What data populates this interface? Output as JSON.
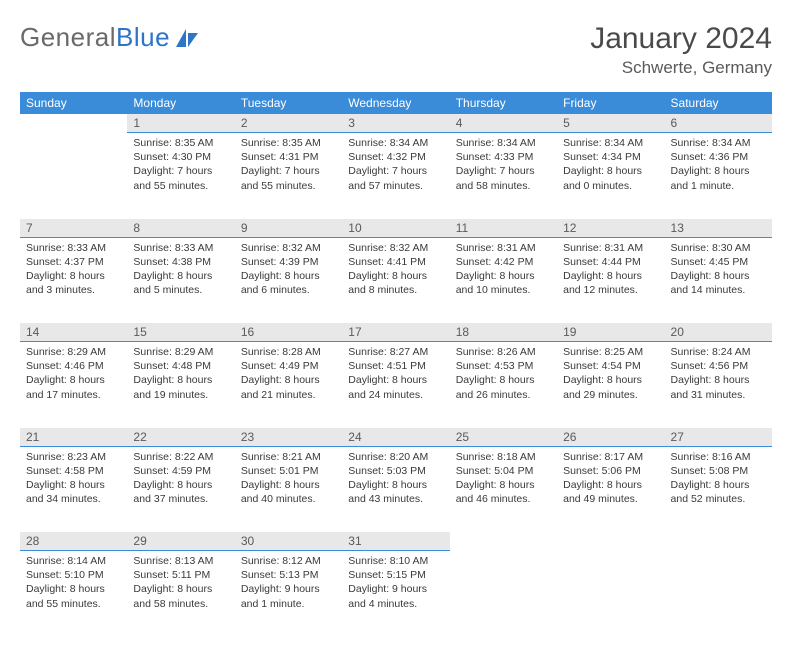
{
  "logo": {
    "text1": "General",
    "text2": "Blue"
  },
  "title": "January 2024",
  "location": "Schwerte, Germany",
  "day_headers": [
    "Sunday",
    "Monday",
    "Tuesday",
    "Wednesday",
    "Thursday",
    "Friday",
    "Saturday"
  ],
  "colors": {
    "header_bg": "#3a8bd8",
    "header_text": "#ffffff",
    "daynum_bg": "#e8e8e8",
    "daynum_border": "#3a8bd8",
    "body_text": "#3a3a3a",
    "page_bg": "#ffffff",
    "logo_gray": "#6a6a6a",
    "logo_blue": "#2d76c7"
  },
  "layout": {
    "cols": 7,
    "rows": 5,
    "cell_font_size_pt": 8
  },
  "weeks": [
    [
      null,
      {
        "n": "1",
        "sunrise": "Sunrise: 8:35 AM",
        "sunset": "Sunset: 4:30 PM",
        "daylight": "Daylight: 7 hours and 55 minutes."
      },
      {
        "n": "2",
        "sunrise": "Sunrise: 8:35 AM",
        "sunset": "Sunset: 4:31 PM",
        "daylight": "Daylight: 7 hours and 55 minutes."
      },
      {
        "n": "3",
        "sunrise": "Sunrise: 8:34 AM",
        "sunset": "Sunset: 4:32 PM",
        "daylight": "Daylight: 7 hours and 57 minutes."
      },
      {
        "n": "4",
        "sunrise": "Sunrise: 8:34 AM",
        "sunset": "Sunset: 4:33 PM",
        "daylight": "Daylight: 7 hours and 58 minutes."
      },
      {
        "n": "5",
        "sunrise": "Sunrise: 8:34 AM",
        "sunset": "Sunset: 4:34 PM",
        "daylight": "Daylight: 8 hours and 0 minutes."
      },
      {
        "n": "6",
        "sunrise": "Sunrise: 8:34 AM",
        "sunset": "Sunset: 4:36 PM",
        "daylight": "Daylight: 8 hours and 1 minute."
      }
    ],
    [
      {
        "n": "7",
        "sunrise": "Sunrise: 8:33 AM",
        "sunset": "Sunset: 4:37 PM",
        "daylight": "Daylight: 8 hours and 3 minutes."
      },
      {
        "n": "8",
        "sunrise": "Sunrise: 8:33 AM",
        "sunset": "Sunset: 4:38 PM",
        "daylight": "Daylight: 8 hours and 5 minutes."
      },
      {
        "n": "9",
        "sunrise": "Sunrise: 8:32 AM",
        "sunset": "Sunset: 4:39 PM",
        "daylight": "Daylight: 8 hours and 6 minutes."
      },
      {
        "n": "10",
        "sunrise": "Sunrise: 8:32 AM",
        "sunset": "Sunset: 4:41 PM",
        "daylight": "Daylight: 8 hours and 8 minutes."
      },
      {
        "n": "11",
        "sunrise": "Sunrise: 8:31 AM",
        "sunset": "Sunset: 4:42 PM",
        "daylight": "Daylight: 8 hours and 10 minutes."
      },
      {
        "n": "12",
        "sunrise": "Sunrise: 8:31 AM",
        "sunset": "Sunset: 4:44 PM",
        "daylight": "Daylight: 8 hours and 12 minutes."
      },
      {
        "n": "13",
        "sunrise": "Sunrise: 8:30 AM",
        "sunset": "Sunset: 4:45 PM",
        "daylight": "Daylight: 8 hours and 14 minutes."
      }
    ],
    [
      {
        "n": "14",
        "sunrise": "Sunrise: 8:29 AM",
        "sunset": "Sunset: 4:46 PM",
        "daylight": "Daylight: 8 hours and 17 minutes."
      },
      {
        "n": "15",
        "sunrise": "Sunrise: 8:29 AM",
        "sunset": "Sunset: 4:48 PM",
        "daylight": "Daylight: 8 hours and 19 minutes."
      },
      {
        "n": "16",
        "sunrise": "Sunrise: 8:28 AM",
        "sunset": "Sunset: 4:49 PM",
        "daylight": "Daylight: 8 hours and 21 minutes."
      },
      {
        "n": "17",
        "sunrise": "Sunrise: 8:27 AM",
        "sunset": "Sunset: 4:51 PM",
        "daylight": "Daylight: 8 hours and 24 minutes."
      },
      {
        "n": "18",
        "sunrise": "Sunrise: 8:26 AM",
        "sunset": "Sunset: 4:53 PM",
        "daylight": "Daylight: 8 hours and 26 minutes."
      },
      {
        "n": "19",
        "sunrise": "Sunrise: 8:25 AM",
        "sunset": "Sunset: 4:54 PM",
        "daylight": "Daylight: 8 hours and 29 minutes."
      },
      {
        "n": "20",
        "sunrise": "Sunrise: 8:24 AM",
        "sunset": "Sunset: 4:56 PM",
        "daylight": "Daylight: 8 hours and 31 minutes."
      }
    ],
    [
      {
        "n": "21",
        "sunrise": "Sunrise: 8:23 AM",
        "sunset": "Sunset: 4:58 PM",
        "daylight": "Daylight: 8 hours and 34 minutes."
      },
      {
        "n": "22",
        "sunrise": "Sunrise: 8:22 AM",
        "sunset": "Sunset: 4:59 PM",
        "daylight": "Daylight: 8 hours and 37 minutes."
      },
      {
        "n": "23",
        "sunrise": "Sunrise: 8:21 AM",
        "sunset": "Sunset: 5:01 PM",
        "daylight": "Daylight: 8 hours and 40 minutes."
      },
      {
        "n": "24",
        "sunrise": "Sunrise: 8:20 AM",
        "sunset": "Sunset: 5:03 PM",
        "daylight": "Daylight: 8 hours and 43 minutes."
      },
      {
        "n": "25",
        "sunrise": "Sunrise: 8:18 AM",
        "sunset": "Sunset: 5:04 PM",
        "daylight": "Daylight: 8 hours and 46 minutes."
      },
      {
        "n": "26",
        "sunrise": "Sunrise: 8:17 AM",
        "sunset": "Sunset: 5:06 PM",
        "daylight": "Daylight: 8 hours and 49 minutes."
      },
      {
        "n": "27",
        "sunrise": "Sunrise: 8:16 AM",
        "sunset": "Sunset: 5:08 PM",
        "daylight": "Daylight: 8 hours and 52 minutes."
      }
    ],
    [
      {
        "n": "28",
        "sunrise": "Sunrise: 8:14 AM",
        "sunset": "Sunset: 5:10 PM",
        "daylight": "Daylight: 8 hours and 55 minutes."
      },
      {
        "n": "29",
        "sunrise": "Sunrise: 8:13 AM",
        "sunset": "Sunset: 5:11 PM",
        "daylight": "Daylight: 8 hours and 58 minutes."
      },
      {
        "n": "30",
        "sunrise": "Sunrise: 8:12 AM",
        "sunset": "Sunset: 5:13 PM",
        "daylight": "Daylight: 9 hours and 1 minute."
      },
      {
        "n": "31",
        "sunrise": "Sunrise: 8:10 AM",
        "sunset": "Sunset: 5:15 PM",
        "daylight": "Daylight: 9 hours and 4 minutes."
      },
      null,
      null,
      null
    ]
  ]
}
